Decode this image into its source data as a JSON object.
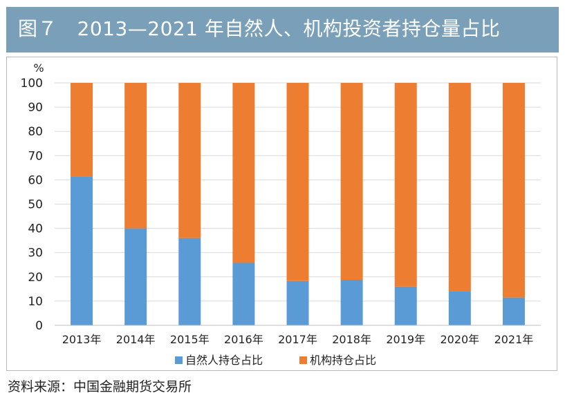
{
  "header": {
    "title": "图７　2013—2021 年自然人、机构投资者持仓量占比"
  },
  "footer": {
    "source": "资料来源：中国金融期货交易所"
  },
  "colors": {
    "title_bar": "#7a9fb8",
    "natural_person": "#5b9bd5",
    "institution": "#ed7d31",
    "grid": "#d9d9d9"
  },
  "chart_data": {
    "type": "bar",
    "stacked": true,
    "unit_label": "%",
    "categories": [
      "2013年",
      "2014年",
      "2015年",
      "2016年",
      "2017年",
      "2018年",
      "2019年",
      "2020年",
      "2021年"
    ],
    "series": [
      {
        "name": "自然人持仓占比",
        "color": "#5b9bd5",
        "values": [
          61.5,
          40,
          36,
          25.8,
          18.3,
          18.8,
          16,
          14.2,
          11.5
        ]
      },
      {
        "name": "机构持仓占比",
        "color": "#ed7d31",
        "values": [
          38.5,
          60,
          64,
          74.2,
          81.7,
          81.2,
          84,
          85.8,
          88.5
        ]
      }
    ],
    "ylim": [
      0,
      100
    ],
    "yticks": [
      "0",
      "10",
      "20",
      "30",
      "40",
      "50",
      "60",
      "70",
      "80",
      "90",
      "100"
    ],
    "grid": true,
    "legend_position": "bottom"
  }
}
